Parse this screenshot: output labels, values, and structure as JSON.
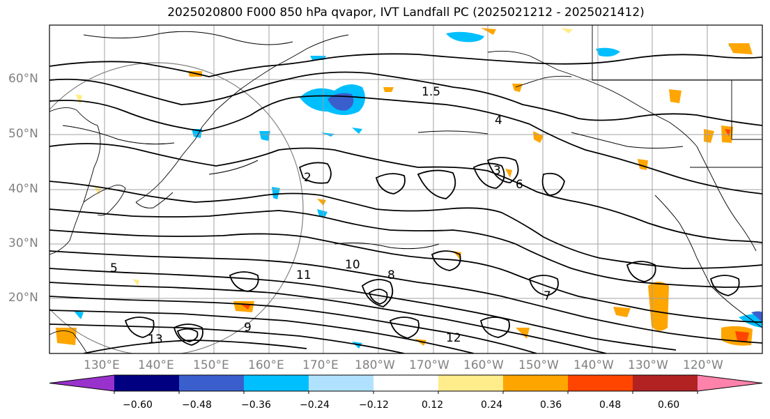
{
  "title": "2025020800 F000 850 hPa qvapor, IVT Landfall PC (2025021212 - 2025021412)",
  "lat_labels": [
    "60°N",
    "50°N",
    "40°N",
    "30°N",
    "20°N"
  ],
  "lon_labels": [
    "130°E",
    "140°E",
    "150°E",
    "160°E",
    "170°E",
    "180°W",
    "170°W",
    "160°W",
    "150°W",
    "140°W",
    "130°W",
    "120°W"
  ],
  "colorbar": {
    "ticks": [
      "−0.60",
      "−0.48",
      "−0.36",
      "−0.24",
      "−0.12",
      "0.12",
      "0.24",
      "0.36",
      "0.48",
      "0.60"
    ],
    "colors": [
      "#9932cc",
      "#000080",
      "#3a5fcd",
      "#00bfff",
      "#b0e2ff",
      "#ffffff",
      "#ffec8b",
      "#ffa500",
      "#ff4500",
      "#b22222",
      "#ff82ab"
    ]
  },
  "contour_labels": [
    "2",
    "3",
    "4",
    "5",
    "6",
    "7",
    "8",
    "9",
    "10",
    "11",
    "12",
    "13",
    "1.5"
  ],
  "colors": {
    "frame": "#000000",
    "grid": "#a0a0a0",
    "coast": "#000000",
    "contour": "#000000"
  }
}
